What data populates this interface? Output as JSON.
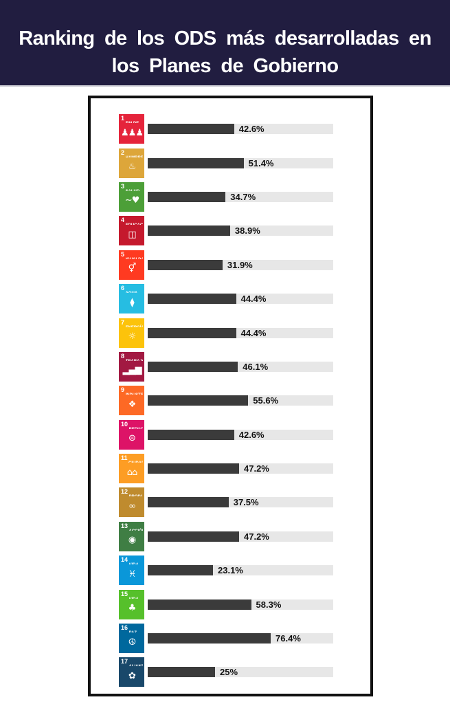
{
  "header": {
    "title_line1": "Ranking de los ODS más desarrolladas en",
    "title_line2": "los Planes de Gobierno"
  },
  "theme": {
    "page_bg": "#ffffff",
    "header_bg": "#211d40",
    "header_text": "#ffffff",
    "panel_border": "#111111",
    "bar_track": "#e7e7e7",
    "bar_fill": "#3b3b3b",
    "value_text": "#121212"
  },
  "chart_data": {
    "type": "bar",
    "orientation": "horizontal",
    "title": "Ranking de los ODS más desarrolladas en los Planes de Gobierno",
    "categories": [
      "ODS 1 Fin de la pobreza",
      "ODS 2 Hambre cero",
      "ODS 3 Salud y bienestar",
      "ODS 4 Educación de calidad",
      "ODS 5 Igualdad de género",
      "ODS 6 Agua limpia y saneamiento",
      "ODS 7 Energía asequible y no contaminante",
      "ODS 8 Trabajo decente y crecimiento económico",
      "ODS 9 Industria, innovación e infraestructura",
      "ODS 10 Reducción de las desigualdades",
      "ODS 11 Ciudades y comunidades sostenibles",
      "ODS 12 Producción y consumo responsables",
      "ODS 13 Acción por el clima",
      "ODS 14 Vida submarina",
      "ODS 15 Vida de ecosistemas terrestres",
      "ODS 16 Paz, justicia e instituciones sólidas",
      "ODS 17 Alianzas para lograr los objetivos"
    ],
    "values": [
      42.6,
      51.4,
      34.7,
      38.9,
      31.9,
      44.4,
      44.4,
      46.1,
      55.6,
      42.6,
      47.2,
      37.5,
      47.2,
      23.1,
      58.3,
      76.4,
      25
    ],
    "value_labels": [
      "42.6%",
      "51.4%",
      "34.7%",
      "38.9%",
      "31.9%",
      "44.4%",
      "44.4%",
      "46.1%",
      "55.6%",
      "42.6%",
      "47.2%",
      "37.5%",
      "47.2%",
      "23.1%",
      "58.3%",
      "76.4%",
      "25%"
    ],
    "xlim": [
      0,
      100
    ],
    "grid": false,
    "legend": false,
    "render_map": {
      "slope": 0.584,
      "intercept": 21.7
    }
  },
  "goals": [
    {
      "num": "1",
      "title": "FIN DE LA POBREZA",
      "color": "#E5243B",
      "icon": "people-icon",
      "glyph": "♟♟♟"
    },
    {
      "num": "2",
      "title": "HAMBRE CERO",
      "color": "#DDA63A",
      "icon": "bowl-icon",
      "glyph": "♨"
    },
    {
      "num": "3",
      "title": "SALUD Y BIENESTAR",
      "color": "#4C9F38",
      "icon": "heartbeat-icon",
      "glyph": "∼♥"
    },
    {
      "num": "4",
      "title": "EDUCACIÓN DE CALIDAD",
      "color": "#C5192D",
      "icon": "book-icon",
      "glyph": "◫"
    },
    {
      "num": "5",
      "title": "IGUALDAD DE GÉNERO",
      "color": "#FF3A21",
      "icon": "gender-equality-icon",
      "glyph": "⚥"
    },
    {
      "num": "6",
      "title": "AGUA LIMPIA Y SANEAMIENTO",
      "color": "#26BDE2",
      "icon": "water-drop-icon",
      "glyph": "⧫"
    },
    {
      "num": "7",
      "title": "ENERGÍA ASEQUIBLE Y NO CONTAMINANTE",
      "color": "#FCC30B",
      "icon": "sun-icon",
      "glyph": "☼"
    },
    {
      "num": "8",
      "title": "TRABAJO DECENTE Y CRECIMIENTO ECONÓMICO",
      "color": "#A21942",
      "icon": "growth-chart-icon",
      "glyph": "▂▄▆"
    },
    {
      "num": "9",
      "title": "INDUSTRIA, INNOVACIÓN E INFRAESTRUCTURA",
      "color": "#FD6925",
      "icon": "building-blocks-icon",
      "glyph": "❖"
    },
    {
      "num": "10",
      "title": "REDUCCIÓN DE LAS DESIGUALDADES",
      "color": "#DD1367",
      "icon": "equality-icon",
      "glyph": "⊜"
    },
    {
      "num": "11",
      "title": "CIUDADES Y COMUNIDADES SOSTENIBLES",
      "color": "#FD9D24",
      "icon": "city-icon",
      "glyph": "⌂⌂"
    },
    {
      "num": "12",
      "title": "PRODUCCIÓN Y CONSUMO RESPONSABLES",
      "color": "#BF8B2E",
      "icon": "infinity-icon",
      "glyph": "∞"
    },
    {
      "num": "13",
      "title": "ACCIÓN POR EL CLIMA",
      "color": "#3F7E44",
      "icon": "eye-icon",
      "glyph": "◉"
    },
    {
      "num": "14",
      "title": "VIDA SUBMARINA",
      "color": "#0A97D9",
      "icon": "fish-icon",
      "glyph": "♓"
    },
    {
      "num": "15",
      "title": "VIDA DE ECOSISTEMAS TERRESTRES",
      "color": "#56C02B",
      "icon": "tree-icon",
      "glyph": "♣"
    },
    {
      "num": "16",
      "title": "PAZ, JUSTICIA E INSTITUCIONES SÓLIDAS",
      "color": "#00689D",
      "icon": "dove-icon",
      "glyph": "☮"
    },
    {
      "num": "17",
      "title": "ALIANZAS PARA LOGRAR LOS OBJETIVOS",
      "color": "#19486A",
      "icon": "rings-icon",
      "glyph": "✿"
    }
  ]
}
